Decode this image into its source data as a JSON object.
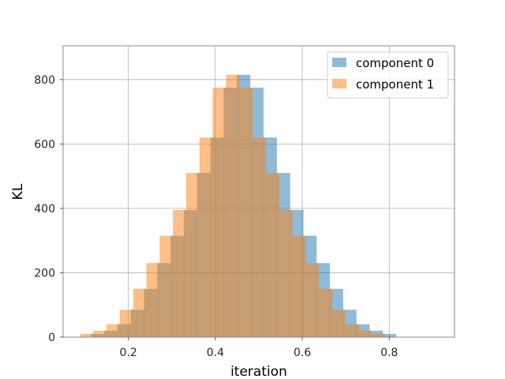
{
  "chart_data": {
    "type": "bar",
    "subtype": "overlapping-histogram",
    "xlabel": "iteration",
    "ylabel": "KL",
    "xlim": [
      0.05,
      0.95
    ],
    "ylim": [
      0,
      905
    ],
    "xticks": [
      0.2,
      0.4,
      0.6,
      0.8
    ],
    "xtick_labels": [
      "0.2",
      "0.4",
      "0.6",
      "0.8"
    ],
    "yticks": [
      0,
      200,
      400,
      600,
      800
    ],
    "ytick_labels": [
      "0",
      "200",
      "400",
      "600",
      "800"
    ],
    "grid": true,
    "legend_position": "top-right",
    "bin_width": 0.0305,
    "series": [
      {
        "name": "component 0",
        "color": "#1f77b4",
        "opacity": 0.5,
        "bin_start": 0.114,
        "values": [
          10,
          20,
          40,
          85,
          150,
          230,
          315,
          395,
          510,
          620,
          775,
          815,
          775,
          620,
          510,
          395,
          315,
          230,
          150,
          85,
          40,
          20,
          10
        ]
      },
      {
        "name": "component 1",
        "color": "#ff7f0e",
        "opacity": 0.5,
        "bin_start": 0.089,
        "values": [
          10,
          20,
          40,
          85,
          150,
          230,
          315,
          395,
          510,
          620,
          775,
          815,
          775,
          620,
          510,
          395,
          315,
          230,
          150,
          85,
          40,
          20,
          10
        ]
      }
    ]
  }
}
